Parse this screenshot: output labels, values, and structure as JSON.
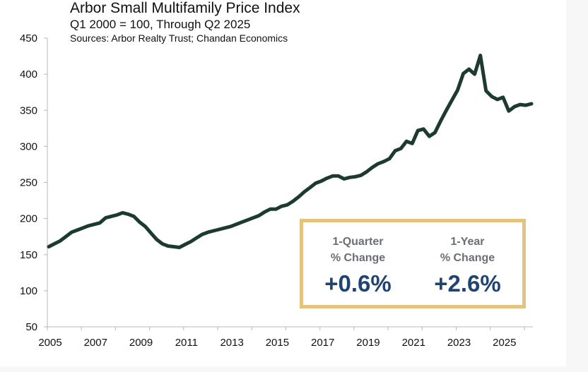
{
  "chart_data": {
    "type": "line",
    "title": "Arbor Small Multifamily Price Index",
    "subtitle": "Q1 2000 = 100, Through Q2 2025",
    "source": "Sources: Arbor Realty Trust; Chandan Economics",
    "xlabel": "",
    "ylabel": "",
    "ylim": [
      50,
      450
    ],
    "yticks": [
      50,
      100,
      150,
      200,
      250,
      300,
      350,
      400,
      450
    ],
    "xtick_labels": [
      "2005",
      "2007",
      "2009",
      "2011",
      "2013",
      "2015",
      "2017",
      "2019",
      "2021",
      "2023",
      "2025"
    ],
    "x_start": "Q1 2005",
    "x_end": "Q2 2025",
    "grid": false,
    "legend": "none",
    "series": [
      {
        "name": "Arbor Small Multifamily Price Index",
        "color": "#1c3b2e",
        "frequency": "quarterly",
        "values": [
          161,
          165,
          169,
          175,
          181,
          184,
          187,
          190,
          192,
          194,
          201,
          203,
          205,
          208,
          206,
          203,
          195,
          189,
          180,
          171,
          165,
          162,
          161,
          160,
          164,
          168,
          173,
          178,
          181,
          183,
          185,
          187,
          189,
          192,
          195,
          198,
          201,
          204,
          209,
          213,
          213,
          217,
          219,
          224,
          230,
          237,
          243,
          249,
          252,
          256,
          259,
          259,
          255,
          257,
          258,
          260,
          265,
          271,
          276,
          279,
          283,
          294,
          297,
          307,
          304,
          322,
          324,
          314,
          319,
          335,
          350,
          364,
          378,
          401,
          407,
          400,
          426,
          377,
          369,
          365,
          368,
          349,
          355,
          358,
          357,
          359
        ]
      }
    ],
    "annotations": [
      {
        "label": "1-Quarter % Change",
        "value": "+0.6%"
      },
      {
        "label": "1-Year % Change",
        "value": "+2.6%"
      }
    ]
  },
  "header": {
    "title": "Arbor Small Multifamily Price Index",
    "subtitle": "Q1 2000 = 100, Through Q2 2025",
    "source": "Sources: Arbor Realty Trust; Chandan Economics"
  },
  "callout": {
    "border_color": "#e3c37d",
    "value_color": "#1f4472",
    "left": {
      "line1": "1-Quarter",
      "line2": "% Change",
      "value": "+0.6%"
    },
    "right": {
      "line1": "1-Year",
      "line2": "% Change",
      "value": "+2.6%"
    }
  }
}
